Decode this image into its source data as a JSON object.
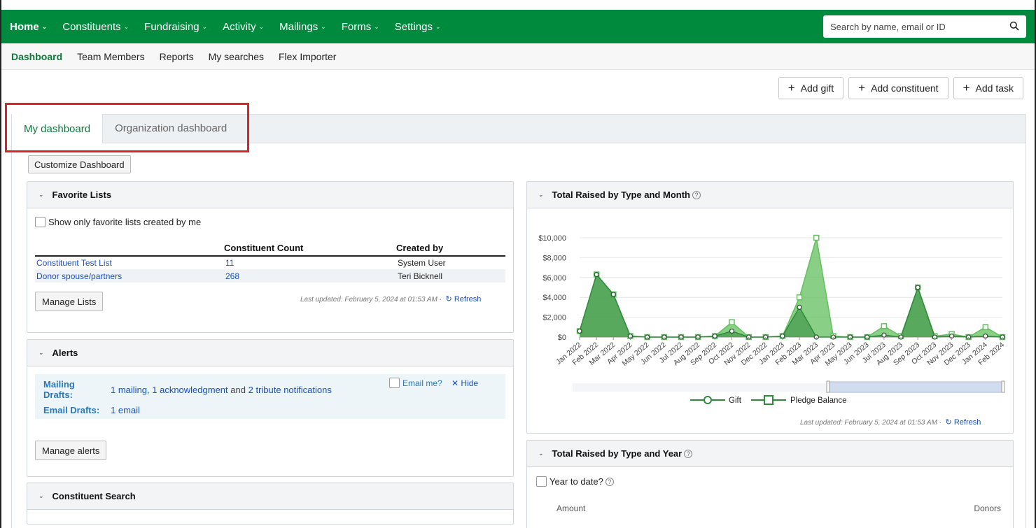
{
  "topnav": {
    "items": [
      {
        "label": "Home",
        "active": true
      },
      {
        "label": "Constituents"
      },
      {
        "label": "Fundraising"
      },
      {
        "label": "Activity"
      },
      {
        "label": "Mailings"
      },
      {
        "label": "Forms"
      },
      {
        "label": "Settings"
      }
    ],
    "search_placeholder": "Search by name, email or ID"
  },
  "subnav": {
    "items": [
      "Dashboard",
      "Team Members",
      "Reports",
      "My searches",
      "Flex Importer"
    ]
  },
  "actions": {
    "add_gift": "Add gift",
    "add_constituent": "Add constituent",
    "add_task": "Add task"
  },
  "tabs": {
    "my_dashboard": "My dashboard",
    "org_dashboard": "Organization dashboard"
  },
  "customize_label": "Customize Dashboard",
  "favorite_lists": {
    "title": "Favorite Lists",
    "checkbox_label": "Show only favorite lists created by me",
    "columns": [
      "",
      "Constituent Count",
      "Created by"
    ],
    "rows": [
      {
        "name": "Constituent Test List",
        "count": "11",
        "created_by": "System User"
      },
      {
        "name": "Donor spouse/partners",
        "count": "268",
        "created_by": "Teri Bicknell"
      }
    ],
    "manage_label": "Manage Lists",
    "updated": "Last updated: February 5, 2024 at 01:53 AM ·",
    "refresh": "Refresh"
  },
  "alerts": {
    "title": "Alerts",
    "mailing_label": "Mailing Drafts:",
    "mailing_text_1": "1 mailing, 1 acknowledgment",
    "mailing_and": "and",
    "mailing_text_2": "2 tribute notifications",
    "email_label": "Email Drafts:",
    "email_text": "1 email",
    "email_me": "Email me?",
    "hide": "Hide",
    "manage_label": "Manage alerts"
  },
  "constituent_search": {
    "title": "Constituent Search"
  },
  "total_month": {
    "title": "Total Raised by Type and Month",
    "updated": "Last updated: February 5, 2024 at 01:53 AM ·",
    "refresh": "Refresh"
  },
  "total_year": {
    "title": "Total Raised by Type and Year",
    "checkbox_label": "Year to date?",
    "col_amount": "Amount",
    "col_donors": "Donors"
  },
  "chart_data": {
    "type": "area",
    "categories": [
      "Jan 2022",
      "Feb 2022",
      "Mar 2022",
      "Apr 2022",
      "May 2022",
      "Jun 2022",
      "Jul 2022",
      "Aug 2022",
      "Sep 2022",
      "Oct 2022",
      "Nov 2022",
      "Dec 2022",
      "Jan 2023",
      "Feb 2023",
      "Mar 2023",
      "Apr 2023",
      "May 2023",
      "Jun 2023",
      "Jul 2023",
      "Aug 2023",
      "Sep 2023",
      "Oct 2023",
      "Nov 2023",
      "Dec 2023",
      "Jan 2024",
      "Feb 2024"
    ],
    "series": [
      {
        "name": "Gift",
        "color": "#2f8a3e",
        "values": [
          600,
          6300,
          4300,
          100,
          0,
          0,
          0,
          0,
          100,
          600,
          0,
          0,
          100,
          3000,
          0,
          0,
          0,
          0,
          200,
          0,
          5000,
          0,
          100,
          0,
          100,
          0
        ]
      },
      {
        "name": "Pledge Balance",
        "color": "#62bf5e",
        "values": [
          600,
          6300,
          4300,
          100,
          0,
          0,
          0,
          0,
          100,
          1500,
          0,
          0,
          100,
          4000,
          10000,
          100,
          0,
          0,
          1100,
          100,
          5000,
          100,
          300,
          0,
          1000,
          0
        ]
      }
    ],
    "yticks": [
      "$0",
      "$2,000",
      "$4,000",
      "$6,000",
      "$8,000",
      "$10,000"
    ],
    "ylim": [
      0,
      10000
    ],
    "legend": "bottom",
    "grid": true
  }
}
